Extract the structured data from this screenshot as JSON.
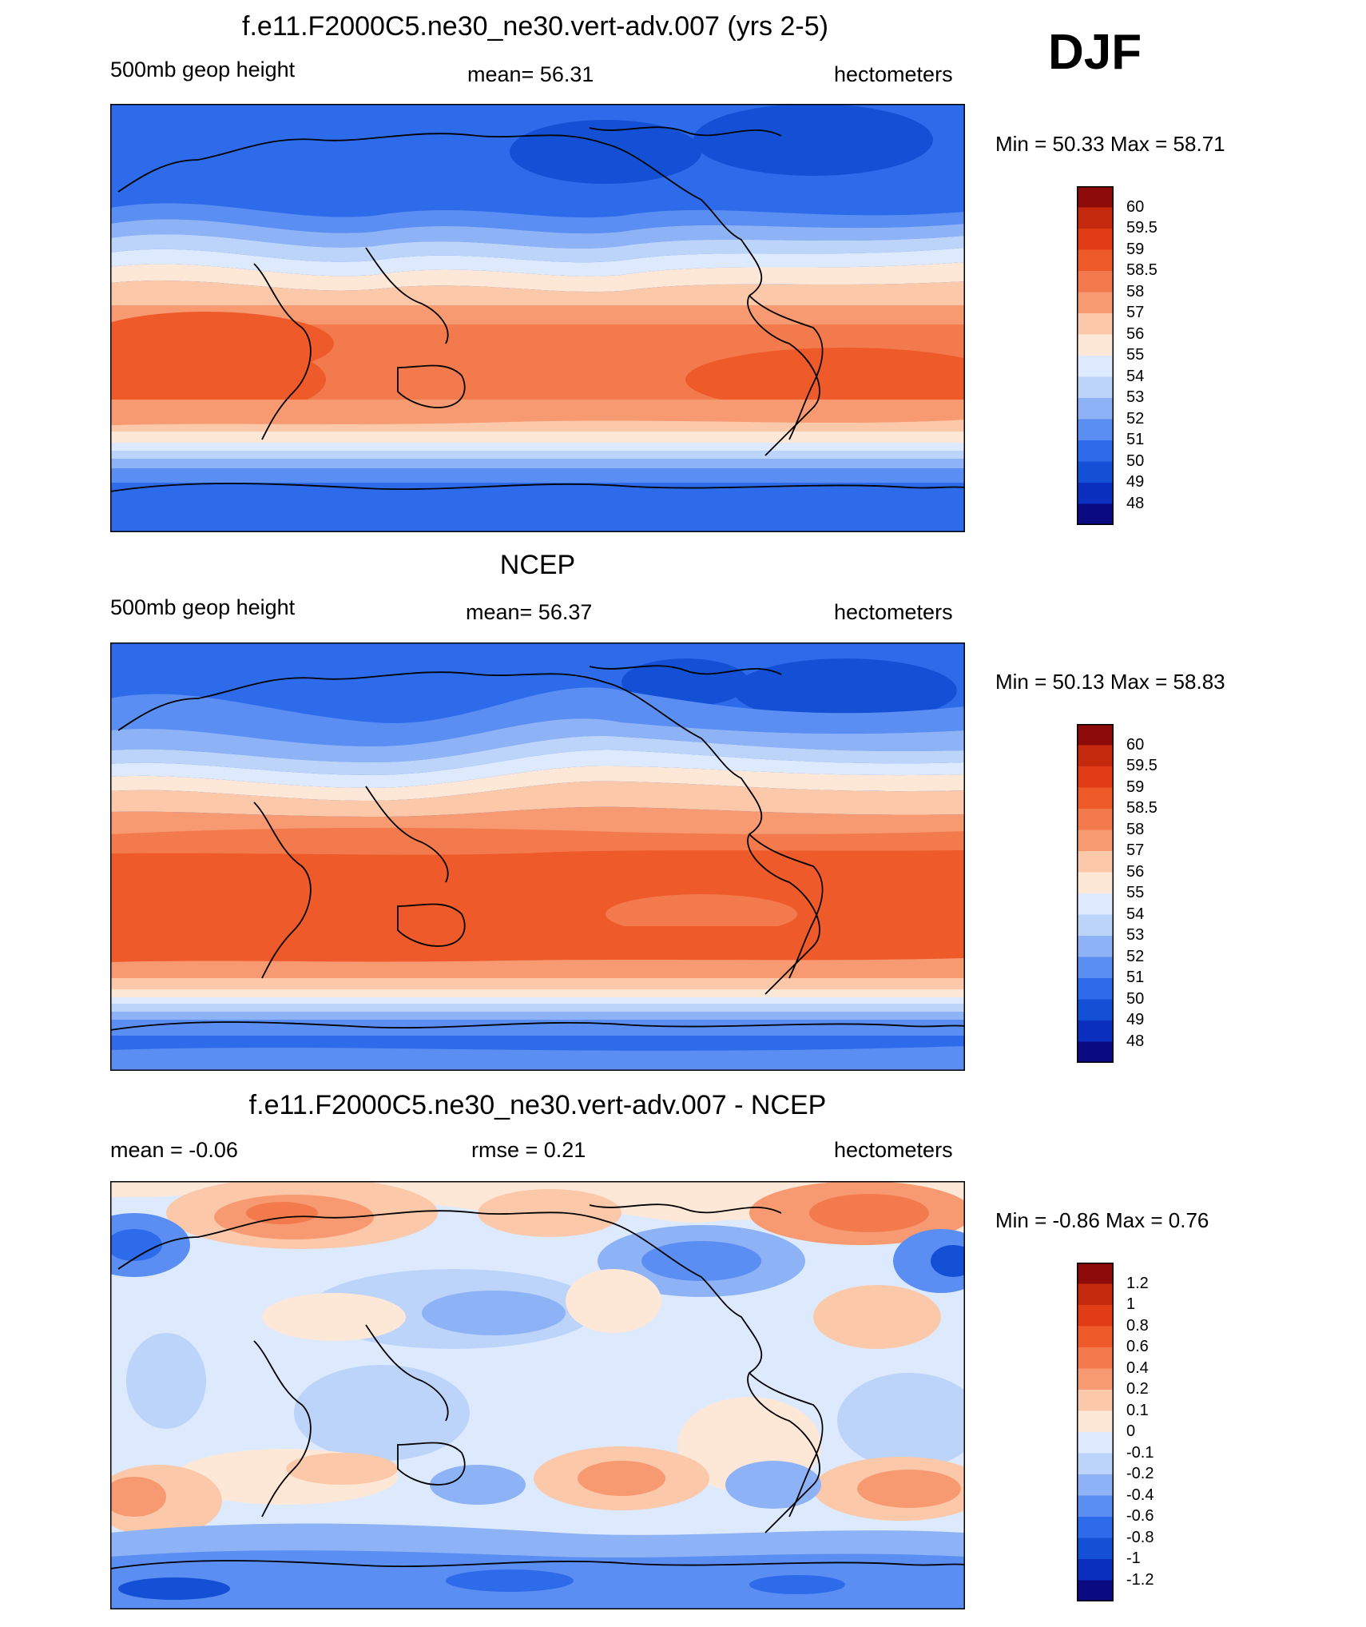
{
  "season": "DJF",
  "colors": {
    "t48": "#0a0a82",
    "t49": "#0b2fbf",
    "t50": "#1450d6",
    "t51": "#2e6bea",
    "t52": "#5b8ef2",
    "t53": "#8db2f6",
    "t54": "#bcd3fa",
    "t55": "#dde9fd",
    "t56": "#fde8d8",
    "t57": "#fbc8a9",
    "t58": "#f79a72",
    "t585": "#f37a4c",
    "t59": "#ef5a2a",
    "t595": "#e03d17",
    "t60": "#c52a0f",
    "t61": "#8c0a08",
    "coast": "#000000"
  },
  "panels": [
    {
      "id": "model",
      "title": "f.e11.F2000C5.ne30_ne30.vert-adv.007 (yrs 2-5)",
      "left": "500mb geop height",
      "center": "mean=  56.31",
      "right": "hectometers",
      "minmax": "Min =  50.33 Max =  58.71",
      "colorbar": {
        "labels": [
          "60",
          "59.5",
          "59",
          "58.5",
          "58",
          "57",
          "56",
          "55",
          "54",
          "53",
          "52",
          "51",
          "50",
          "49",
          "48"
        ],
        "colors": [
          "#8c0a08",
          "#c52a0f",
          "#e03d17",
          "#ef5a2a",
          "#f37a4c",
          "#f79a72",
          "#fbc8a9",
          "#fde8d8",
          "#dde9fd",
          "#bcd3fa",
          "#8db2f6",
          "#5b8ef2",
          "#2e6bea",
          "#1450d6",
          "#0b2fbf",
          "#0a0a82"
        ]
      }
    },
    {
      "id": "obs",
      "title": "NCEP",
      "left": "500mb geop height",
      "center": "mean=  56.37",
      "right": "hectometers",
      "minmax": "Min =  50.13 Max =  58.83",
      "colorbar": {
        "labels": [
          "60",
          "59.5",
          "59",
          "58.5",
          "58",
          "57",
          "56",
          "55",
          "54",
          "53",
          "52",
          "51",
          "50",
          "49",
          "48"
        ],
        "colors": [
          "#8c0a08",
          "#c52a0f",
          "#e03d17",
          "#ef5a2a",
          "#f37a4c",
          "#f79a72",
          "#fbc8a9",
          "#fde8d8",
          "#dde9fd",
          "#bcd3fa",
          "#8db2f6",
          "#5b8ef2",
          "#2e6bea",
          "#1450d6",
          "#0b2fbf",
          "#0a0a82"
        ]
      }
    },
    {
      "id": "diff",
      "title": "f.e11.F2000C5.ne30_ne30.vert-adv.007 - NCEP",
      "left": "mean =  -0.06",
      "center": "rmse =   0.21",
      "right": "hectometers",
      "minmax": "Min =  -0.86 Max =   0.76",
      "colorbar": {
        "labels": [
          "1.2",
          "1",
          "0.8",
          "0.6",
          "0.4",
          "0.2",
          "0.1",
          "0",
          "-0.1",
          "-0.2",
          "-0.4",
          "-0.6",
          "-0.8",
          "-1",
          "-1.2"
        ],
        "colors": [
          "#8c0a08",
          "#c52a0f",
          "#e03d17",
          "#ef5a2a",
          "#f37a4c",
          "#f79a72",
          "#fbc8a9",
          "#fde8d8",
          "#dde9fd",
          "#bcd3fa",
          "#8db2f6",
          "#5b8ef2",
          "#2e6bea",
          "#1450d6",
          "#0b2fbf",
          "#0a0a82"
        ]
      }
    }
  ]
}
